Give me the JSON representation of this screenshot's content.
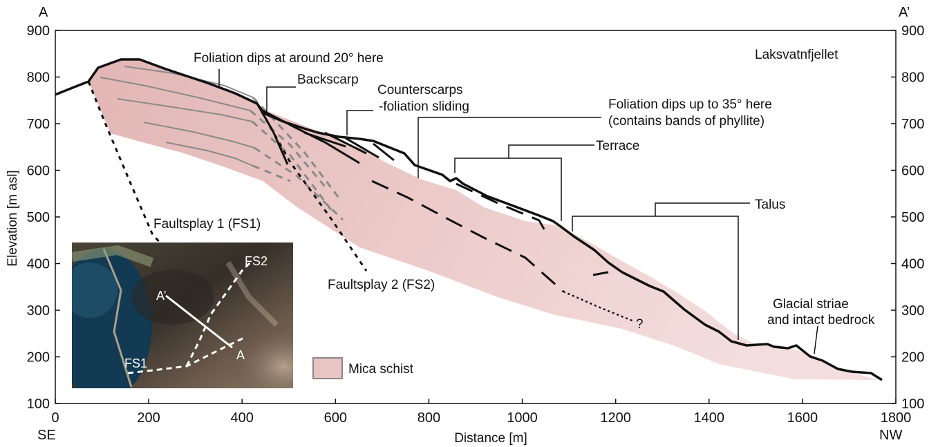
{
  "axes": {
    "xlabel": "Distance [m]",
    "ylabel": "Elevation [m asl]",
    "xlim": [
      0,
      1800
    ],
    "ylim": [
      100,
      900
    ],
    "xticks": [
      0,
      200,
      400,
      600,
      800,
      1000,
      1200,
      1400,
      1600,
      1800
    ],
    "yticks": [
      100,
      200,
      300,
      400,
      500,
      600,
      700,
      800,
      900
    ]
  },
  "ends": {
    "left_profile": "A",
    "right_profile": "A’",
    "left_direction": "SE",
    "right_direction": "NW"
  },
  "location": "Laksvatnfjellet",
  "annotations": {
    "foliation_20": "Foliation dips at around 20° here",
    "backscarp": "Backscarp",
    "counterscarps_1": "Counterscarps",
    "counterscarps_2": "-foliation sliding",
    "foliation_35_1": "Foliation dips up to 35° here",
    "foliation_35_2": "(contains bands of phyllite)",
    "terrace": "Terrace",
    "talus": "Talus",
    "glacial_1": "Glacial striae",
    "glacial_2": "and intact bedrock",
    "fs1": "Faultsplay 1 (FS1)",
    "fs2": "Faultsplay 2 (FS2)",
    "question": "?"
  },
  "legend": {
    "label": "Mica schist",
    "color": "#e8c4c3"
  },
  "inset": {
    "labels": {
      "a_prime": "A’",
      "a": "A",
      "fs1": "FS1",
      "fs2": "FS2"
    }
  },
  "colors": {
    "schist": "#e8c4c3",
    "topography": "#000000",
    "foliation": "#8a8a8a"
  }
}
